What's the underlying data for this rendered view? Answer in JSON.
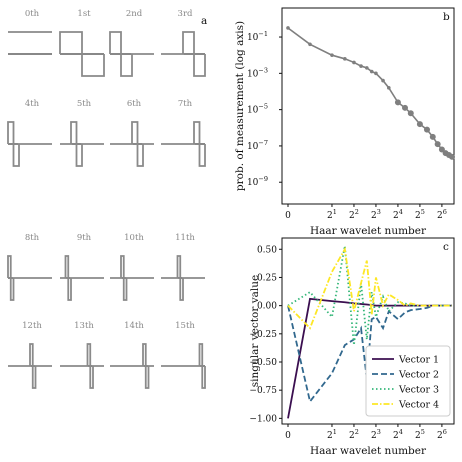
{
  "chart_data": [
    {
      "type": "line",
      "panel_label": "a",
      "wavelet_labels": [
        "0th",
        "1st",
        "2nd",
        "3rd",
        "4th",
        "5th",
        "6th",
        "7th",
        "8th",
        "9th",
        "10th",
        "11th",
        "12th",
        "13th",
        "14th",
        "15th"
      ]
    },
    {
      "type": "line",
      "panel_label": "b",
      "xlabel": "Haar wavelet number",
      "ylabel": "prob. of measurement (log axis)",
      "yscale": "log",
      "ylim_exp": [
        -10,
        0
      ],
      "yticks": [
        "10",
        "10",
        "10",
        "10",
        "10",
        "10"
      ],
      "yticks_exp": [
        "−1",
        "−3",
        "−5",
        "−7",
        "−9"
      ],
      "xticks": [
        "0",
        "2",
        "2",
        "2",
        "2",
        "2",
        "2"
      ],
      "xticks_exp": [
        "",
        "1",
        "2",
        "3",
        "4",
        "5",
        "6"
      ],
      "series": [
        {
          "x": [
            0,
            1,
            2,
            3,
            4,
            5,
            6,
            7,
            8,
            10,
            12,
            16,
            20,
            24,
            32,
            40,
            48,
            56,
            64,
            72,
            80,
            88
          ],
          "y_log10": [
            -0.5,
            -1.4,
            -2.0,
            -2.2,
            -2.4,
            -2.6,
            -2.7,
            -2.9,
            -3.0,
            -3.4,
            -3.8,
            -4.6,
            -4.9,
            -5.2,
            -5.8,
            -6.1,
            -6.5,
            -6.9,
            -7.2,
            -7.4,
            -7.5,
            -7.6
          ]
        }
      ]
    },
    {
      "type": "line",
      "panel_label": "c",
      "xlabel": "Haar wavelet number",
      "ylabel": "singular vector value",
      "ylim": [
        -1.05,
        0.6
      ],
      "yticks": [
        "0.50",
        "0.25",
        "0.00",
        "−0.25",
        "−0.50",
        "−0.75",
        "−1.00"
      ],
      "xticks": [
        "0",
        "2",
        "2",
        "2",
        "2",
        "2",
        "2"
      ],
      "xticks_exp": [
        "",
        "1",
        "2",
        "3",
        "4",
        "5",
        "6"
      ],
      "legend_position": "lower-right",
      "series": [
        {
          "name": "Vector 1",
          "color": "#3b0f50",
          "x": [
            0,
            1,
            2,
            3,
            4,
            6,
            8,
            16,
            32,
            64,
            88
          ],
          "y": [
            -1.0,
            0.06,
            0.04,
            0.03,
            0.02,
            0.01,
            0.0,
            0.0,
            0.0,
            0.0,
            0.0
          ]
        },
        {
          "name": "Vector 2",
          "color": "#31688e",
          "x": [
            0,
            1,
            2,
            3,
            4,
            5,
            6,
            7,
            8,
            10,
            12,
            16,
            20,
            24,
            32,
            40,
            48,
            64,
            88
          ],
          "y": [
            0.0,
            -0.85,
            -0.6,
            -0.35,
            -0.3,
            -0.2,
            -0.65,
            -0.12,
            -0.1,
            -0.2,
            -0.05,
            -0.12,
            -0.06,
            -0.04,
            -0.03,
            -0.02,
            0.0,
            0.0,
            0.0
          ]
        },
        {
          "name": "Vector 3",
          "color": "#35b779",
          "x": [
            0,
            1,
            2,
            3,
            4,
            5,
            6,
            7,
            8,
            10,
            12,
            16,
            20,
            24,
            32,
            48,
            64,
            88
          ],
          "y": [
            0.0,
            0.12,
            -0.1,
            0.53,
            -0.35,
            0.2,
            -0.3,
            0.12,
            -0.1,
            0.08,
            -0.05,
            0.03,
            0.02,
            0.0,
            0.0,
            0.0,
            0.0,
            0.0
          ]
        },
        {
          "name": "Vector 4",
          "color": "#fde725",
          "x": [
            0,
            1,
            2,
            3,
            4,
            5,
            6,
            7,
            8,
            10,
            12,
            16,
            20,
            24,
            32,
            48,
            64,
            88
          ],
          "y": [
            0.0,
            -0.2,
            0.3,
            0.5,
            -0.05,
            0.2,
            0.4,
            -0.08,
            0.25,
            0.0,
            0.1,
            0.05,
            0.0,
            0.02,
            0.0,
            0.0,
            0.0,
            0.0
          ]
        }
      ]
    }
  ]
}
